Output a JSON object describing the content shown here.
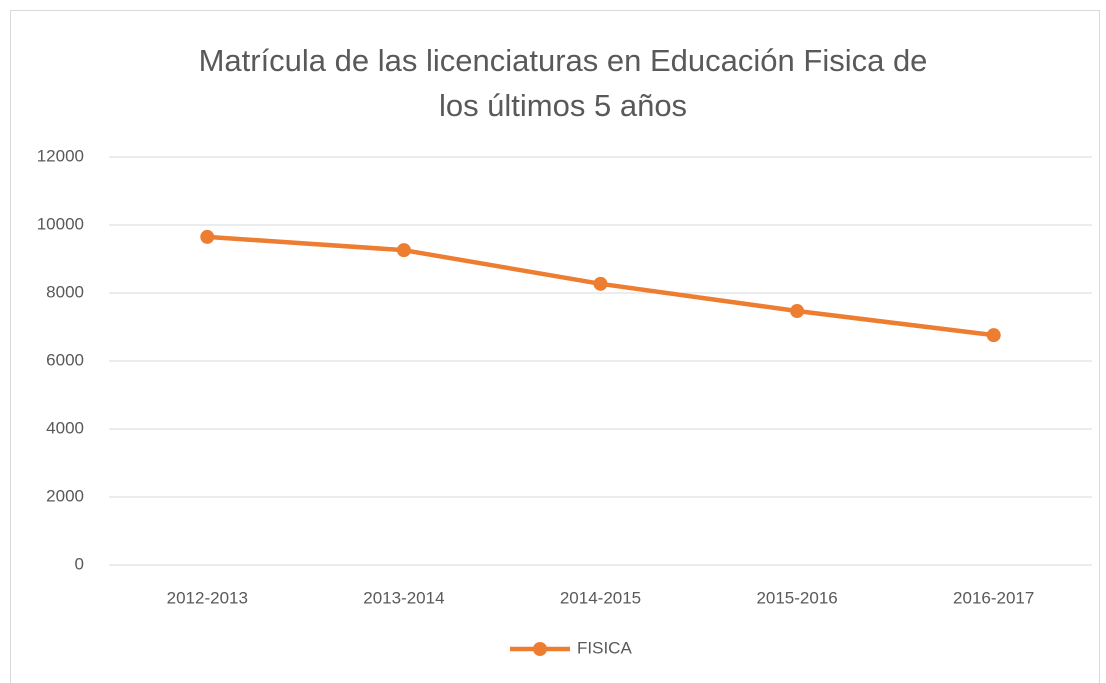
{
  "chart_data": {
    "type": "line",
    "title": "Matrícula de las licenciaturas en Educación Fisica de los últimos 5 años",
    "categories": [
      "2012-2013",
      "2013-2014",
      "2014-2015",
      "2015-2016",
      "2016-2017"
    ],
    "series": [
      {
        "name": "FISICA",
        "color": "#ed7d31",
        "values": [
          9650,
          9260,
          8270,
          7470,
          6760
        ]
      }
    ],
    "ylim": [
      0,
      12000
    ],
    "yticks": [
      0,
      2000,
      4000,
      6000,
      8000,
      10000,
      12000
    ],
    "grid": true,
    "legend": "bottom"
  }
}
